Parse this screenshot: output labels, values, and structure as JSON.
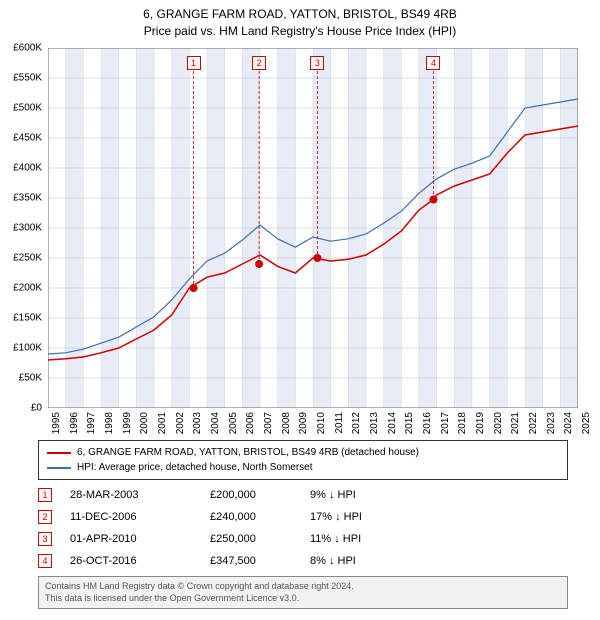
{
  "title_line1": "6, GRANGE FARM ROAD, YATTON, BRISTOL, BS49 4RB",
  "title_line2": "Price paid vs. HM Land Registry's House Price Index (HPI)",
  "chart": {
    "type": "line",
    "background_color": "#ffffff",
    "grid_color": "#bfbfbf",
    "band_color": "#e8ecf6",
    "ylim": [
      0,
      600000
    ],
    "ytick_step": 50000,
    "y_labels": [
      "£0",
      "£50K",
      "£100K",
      "£150K",
      "£200K",
      "£250K",
      "£300K",
      "£350K",
      "£400K",
      "£450K",
      "£500K",
      "£550K",
      "£600K"
    ],
    "xlim": [
      1995,
      2025
    ],
    "x_labels": [
      "1995",
      "1996",
      "1997",
      "1998",
      "1999",
      "2000",
      "2001",
      "2002",
      "2003",
      "2004",
      "2005",
      "2006",
      "2007",
      "2008",
      "2009",
      "2010",
      "2011",
      "2012",
      "2013",
      "2014",
      "2015",
      "2016",
      "2017",
      "2018",
      "2019",
      "2020",
      "2021",
      "2022",
      "2023",
      "2024",
      "2025"
    ],
    "series": [
      {
        "name": "6, GRANGE FARM ROAD, YATTON, BRISTOL, BS49 4RB (detached house)",
        "color": "#d00000",
        "line_width": 1.5,
        "data": [
          [
            1995,
            80000
          ],
          [
            1996,
            82000
          ],
          [
            1997,
            85000
          ],
          [
            1998,
            92000
          ],
          [
            1999,
            100000
          ],
          [
            2000,
            115000
          ],
          [
            2001,
            130000
          ],
          [
            2002,
            155000
          ],
          [
            2003,
            200000
          ],
          [
            2004,
            218000
          ],
          [
            2005,
            225000
          ],
          [
            2006,
            240000
          ],
          [
            2007,
            255000
          ],
          [
            2008,
            236000
          ],
          [
            2009,
            225000
          ],
          [
            2010,
            250000
          ],
          [
            2011,
            245000
          ],
          [
            2012,
            248000
          ],
          [
            2013,
            255000
          ],
          [
            2014,
            273000
          ],
          [
            2015,
            295000
          ],
          [
            2016,
            330000
          ],
          [
            2016.82,
            347500
          ],
          [
            2017,
            355000
          ],
          [
            2018,
            370000
          ],
          [
            2019,
            380000
          ],
          [
            2020,
            390000
          ],
          [
            2021,
            425000
          ],
          [
            2022,
            455000
          ],
          [
            2023,
            460000
          ],
          [
            2024,
            465000
          ],
          [
            2025,
            470000
          ]
        ]
      },
      {
        "name": "HPI: Average price, detached house, North Somerset",
        "color": "#3b6fb6",
        "line_width": 1.2,
        "data": [
          [
            1995,
            90000
          ],
          [
            1996,
            92000
          ],
          [
            1997,
            98000
          ],
          [
            1998,
            108000
          ],
          [
            1999,
            118000
          ],
          [
            2000,
            135000
          ],
          [
            2001,
            152000
          ],
          [
            2002,
            180000
          ],
          [
            2003,
            215000
          ],
          [
            2004,
            245000
          ],
          [
            2005,
            258000
          ],
          [
            2006,
            280000
          ],
          [
            2007,
            305000
          ],
          [
            2008,
            282000
          ],
          [
            2009,
            268000
          ],
          [
            2010,
            285000
          ],
          [
            2011,
            278000
          ],
          [
            2012,
            282000
          ],
          [
            2013,
            290000
          ],
          [
            2014,
            308000
          ],
          [
            2015,
            328000
          ],
          [
            2016,
            358000
          ],
          [
            2017,
            382000
          ],
          [
            2018,
            398000
          ],
          [
            2019,
            408000
          ],
          [
            2020,
            420000
          ],
          [
            2021,
            460000
          ],
          [
            2022,
            500000
          ],
          [
            2023,
            505000
          ],
          [
            2024,
            510000
          ],
          [
            2025,
            515000
          ]
        ]
      }
    ],
    "sale_points": [
      {
        "n": "1",
        "year": 2003.24,
        "value": 200000
      },
      {
        "n": "2",
        "year": 2006.95,
        "value": 240000
      },
      {
        "n": "3",
        "year": 2010.25,
        "value": 250000
      },
      {
        "n": "4",
        "year": 2016.82,
        "value": 347500
      }
    ],
    "marker_top_y": 8
  },
  "legend": {
    "items": [
      {
        "color": "#d00000",
        "label": "6, GRANGE FARM ROAD, YATTON, BRISTOL, BS49 4RB (detached house)"
      },
      {
        "color": "#3b6fb6",
        "label": "HPI: Average price, detached house, North Somerset"
      }
    ]
  },
  "sales": [
    {
      "n": "1",
      "date": "28-MAR-2003",
      "price": "£200,000",
      "delta": "9% ↓ HPI"
    },
    {
      "n": "2",
      "date": "11-DEC-2006",
      "price": "£240,000",
      "delta": "17% ↓ HPI"
    },
    {
      "n": "3",
      "date": "01-APR-2010",
      "price": "£250,000",
      "delta": "11% ↓ HPI"
    },
    {
      "n": "4",
      "date": "26-OCT-2016",
      "price": "£347,500",
      "delta": "8% ↓ HPI"
    }
  ],
  "footer_line1": "Contains HM Land Registry data © Crown copyright and database right 2024.",
  "footer_line2": "This data is licensed under the Open Government Licence v3.0."
}
